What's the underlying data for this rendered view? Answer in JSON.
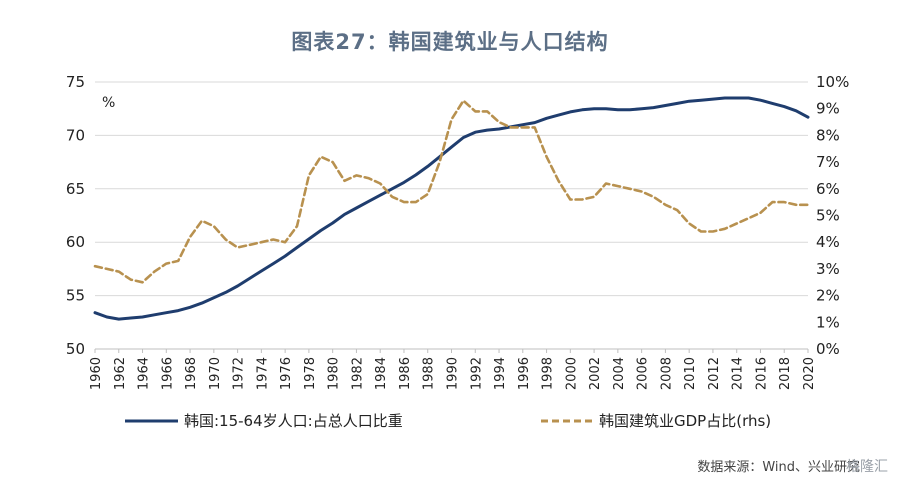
{
  "title": "图表27：韩国建筑业与人口结构",
  "source": "数据来源：Wind、兴业研究",
  "watermark": "格隆汇",
  "colors": {
    "population": "#1f3d6e",
    "construction": "#b8914f",
    "grid": "#d9d9d9"
  },
  "chart_data": {
    "type": "line",
    "unit_left": "%",
    "y_left": {
      "range": [
        50,
        75
      ],
      "ticks": [
        "50",
        "55",
        "60",
        "65",
        "70",
        "75"
      ]
    },
    "y_right": {
      "range": [
        0,
        10
      ],
      "ticks": [
        "0%",
        "1%",
        "2%",
        "3%",
        "4%",
        "5%",
        "6%",
        "7%",
        "8%",
        "9%",
        "10%"
      ]
    },
    "x_ticks": [
      "1960",
      "1962",
      "1964",
      "1966",
      "1968",
      "1970",
      "1972",
      "1974",
      "1976",
      "1978",
      "1980",
      "1982",
      "1984",
      "1986",
      "1988",
      "1990",
      "1992",
      "1994",
      "1996",
      "1998",
      "2000",
      "2002",
      "2004",
      "2006",
      "2008",
      "2010",
      "2012",
      "2014",
      "2016",
      "2018",
      "2020"
    ],
    "x": [
      1960,
      1961,
      1962,
      1963,
      1964,
      1965,
      1966,
      1967,
      1968,
      1969,
      1970,
      1971,
      1972,
      1973,
      1974,
      1975,
      1976,
      1977,
      1978,
      1979,
      1980,
      1981,
      1982,
      1983,
      1984,
      1985,
      1986,
      1987,
      1988,
      1989,
      1990,
      1991,
      1992,
      1993,
      1994,
      1995,
      1996,
      1997,
      1998,
      1999,
      2000,
      2001,
      2002,
      2003,
      2004,
      2005,
      2006,
      2007,
      2008,
      2009,
      2010,
      2011,
      2012,
      2013,
      2014,
      2015,
      2016,
      2017,
      2018,
      2019,
      2020
    ],
    "grid": true,
    "legend_position": "bottom",
    "series": [
      {
        "name": "韩国:15-64岁人口:占总人口比重",
        "axis": "left",
        "style": "solid",
        "values": [
          53.4,
          53.0,
          52.8,
          52.9,
          53.0,
          53.2,
          53.4,
          53.6,
          53.9,
          54.3,
          54.8,
          55.3,
          55.9,
          56.6,
          57.3,
          58.0,
          58.7,
          59.5,
          60.3,
          61.1,
          61.8,
          62.6,
          63.2,
          63.8,
          64.4,
          65.0,
          65.6,
          66.3,
          67.1,
          68.0,
          68.9,
          69.8,
          70.3,
          70.5,
          70.6,
          70.8,
          71.0,
          71.2,
          71.6,
          71.9,
          72.2,
          72.4,
          72.5,
          72.5,
          72.4,
          72.4,
          72.5,
          72.6,
          72.8,
          73.0,
          73.2,
          73.3,
          73.4,
          73.5,
          73.5,
          73.5,
          73.3,
          73.0,
          72.7,
          72.3,
          71.7
        ]
      },
      {
        "name": "韩国建筑业GDP占比(rhs)",
        "axis": "right",
        "style": "dashed",
        "values": [
          3.1,
          3.0,
          2.9,
          2.6,
          2.5,
          2.9,
          3.2,
          3.3,
          4.2,
          4.8,
          4.6,
          4.1,
          3.8,
          3.9,
          4.0,
          4.1,
          4.0,
          4.6,
          6.5,
          7.2,
          7.0,
          6.3,
          6.5,
          6.4,
          6.2,
          5.7,
          5.5,
          5.5,
          5.8,
          7.0,
          8.6,
          9.3,
          8.9,
          8.9,
          8.5,
          8.3,
          8.3,
          8.3,
          7.2,
          6.3,
          5.6,
          5.6,
          5.7,
          6.2,
          6.1,
          6.0,
          5.9,
          5.7,
          5.4,
          5.2,
          4.7,
          4.4,
          4.4,
          4.5,
          4.7,
          4.9,
          5.1,
          5.5,
          5.5,
          5.4,
          5.4
        ]
      }
    ]
  }
}
